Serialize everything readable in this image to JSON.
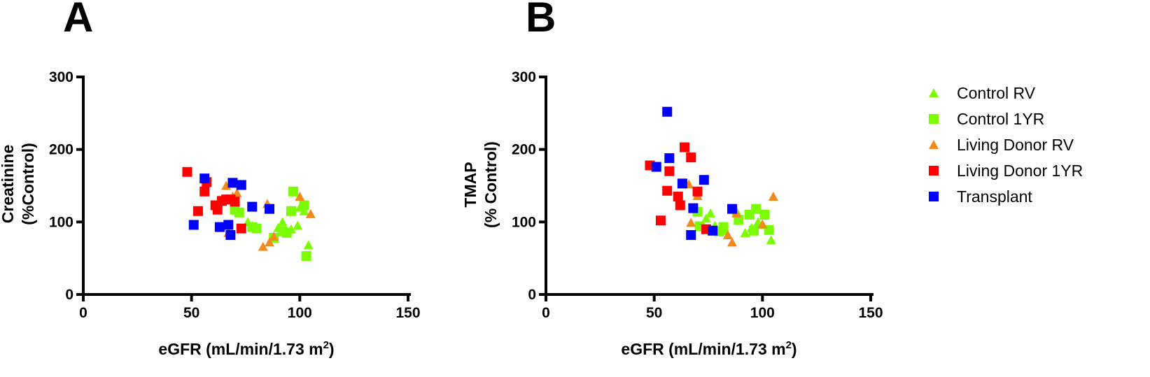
{
  "legend": [
    {
      "name": "Control RV",
      "color": "#7CFC00",
      "marker": "triangle"
    },
    {
      "name": "Control 1YR",
      "color": "#7CFC00",
      "marker": "square"
    },
    {
      "name": "Living Donor RV",
      "color": "#F28A1E",
      "marker": "triangle"
    },
    {
      "name": "Living Donor 1YR",
      "color": "#FF0000",
      "marker": "square"
    },
    {
      "name": "Transplant",
      "color": "#0000FF",
      "marker": "square"
    }
  ],
  "chart_data": [
    {
      "panel": "A",
      "type": "scatter",
      "xlabel_main": "eGFR (mL/min/1.73 m",
      "xlabel_sup": "2",
      "xlabel_end": ")",
      "ylabel_line1": "Creatinine",
      "ylabel_line2": "(%Control)",
      "xlim": [
        0,
        150
      ],
      "ylim": [
        0,
        300
      ],
      "xticks": [
        "0",
        "50",
        "100",
        "150"
      ],
      "yticks": [
        "0",
        "100",
        "200",
        "300"
      ],
      "grid": false,
      "series": [
        {
          "name": "Control RV",
          "points": [
            [
              76,
              100
            ],
            [
              78,
              95
            ],
            [
              90,
              92
            ],
            [
              92,
              100
            ],
            [
              96,
              90
            ],
            [
              99,
              95
            ],
            [
              100,
              120
            ],
            [
              102,
              115
            ],
            [
              104,
              68
            ]
          ]
        },
        {
          "name": "Control 1YR",
          "points": [
            [
              70,
              117
            ],
            [
              72,
              113
            ],
            [
              78,
              93
            ],
            [
              80,
              91
            ],
            [
              88,
              78
            ],
            [
              92,
              87
            ],
            [
              94,
              85
            ],
            [
              96,
              115
            ],
            [
              97,
              142
            ],
            [
              102,
              123
            ],
            [
              103,
              53
            ]
          ]
        },
        {
          "name": "Living Donor RV",
          "points": [
            [
              66,
              150
            ],
            [
              67,
              85
            ],
            [
              69,
              135
            ],
            [
              71,
              140
            ],
            [
              83,
              66
            ],
            [
              85,
              125
            ],
            [
              86,
              72
            ],
            [
              88,
              80
            ],
            [
              100,
              135
            ],
            [
              105,
              111
            ]
          ]
        },
        {
          "name": "Living Donor 1YR",
          "points": [
            [
              48,
              169
            ],
            [
              53,
              115
            ],
            [
              56,
              142
            ],
            [
              57,
              155
            ],
            [
              61,
              123
            ],
            [
              62,
              117
            ],
            [
              64,
              129
            ],
            [
              66,
              131
            ],
            [
              68,
              131
            ],
            [
              70,
              128
            ],
            [
              73,
              91
            ]
          ]
        },
        {
          "name": "Transplant",
          "points": [
            [
              51,
              96
            ],
            [
              56,
              160
            ],
            [
              63,
              93
            ],
            [
              67,
              96
            ],
            [
              68,
              82
            ],
            [
              69,
              154
            ],
            [
              73,
              151
            ],
            [
              78,
              121
            ],
            [
              86,
              118
            ]
          ]
        }
      ]
    },
    {
      "panel": "B",
      "type": "scatter",
      "xlabel_main": "eGFR (mL/min/1.73 m",
      "xlabel_sup": "2",
      "xlabel_end": ")",
      "ylabel_line1": "TMAP",
      "ylabel_line2": "(% Control)",
      "xlim": [
        0,
        150
      ],
      "ylim": [
        0,
        300
      ],
      "xticks": [
        "0",
        "50",
        "100",
        "150"
      ],
      "yticks": [
        "0",
        "100",
        "200",
        "300"
      ],
      "grid": false,
      "series": [
        {
          "name": "Control RV",
          "points": [
            [
              74,
              105
            ],
            [
              76,
              112
            ],
            [
              78,
              95
            ],
            [
              82,
              88
            ],
            [
              88,
              115
            ],
            [
              92,
              85
            ],
            [
              95,
              92
            ],
            [
              98,
              100
            ],
            [
              100,
              96
            ],
            [
              104,
              75
            ]
          ]
        },
        {
          "name": "Control 1YR",
          "points": [
            [
              70,
              114
            ],
            [
              71,
              94
            ],
            [
              80,
              87
            ],
            [
              82,
              93
            ],
            [
              89,
              103
            ],
            [
              94,
              110
            ],
            [
              96,
              88
            ],
            [
              97,
              118
            ],
            [
              101,
              110
            ],
            [
              103,
              89
            ]
          ]
        },
        {
          "name": "Living Donor RV",
          "points": [
            [
              66,
              152
            ],
            [
              67,
              99
            ],
            [
              70,
              136
            ],
            [
              84,
              82
            ],
            [
              86,
              72
            ],
            [
              88,
              112
            ],
            [
              100,
              97
            ],
            [
              105,
              135
            ]
          ]
        },
        {
          "name": "Living Donor 1YR",
          "points": [
            [
              48,
              178
            ],
            [
              53,
              102
            ],
            [
              56,
              143
            ],
            [
              57,
              170
            ],
            [
              61,
              135
            ],
            [
              62,
              123
            ],
            [
              64,
              203
            ],
            [
              67,
              189
            ],
            [
              70,
              142
            ],
            [
              74,
              90
            ]
          ]
        },
        {
          "name": "Transplant",
          "points": [
            [
              51,
              176
            ],
            [
              56,
              252
            ],
            [
              57,
              188
            ],
            [
              63,
              153
            ],
            [
              67,
              82
            ],
            [
              68,
              119
            ],
            [
              73,
              158
            ],
            [
              77,
              88
            ],
            [
              86,
              118
            ]
          ]
        }
      ]
    }
  ]
}
